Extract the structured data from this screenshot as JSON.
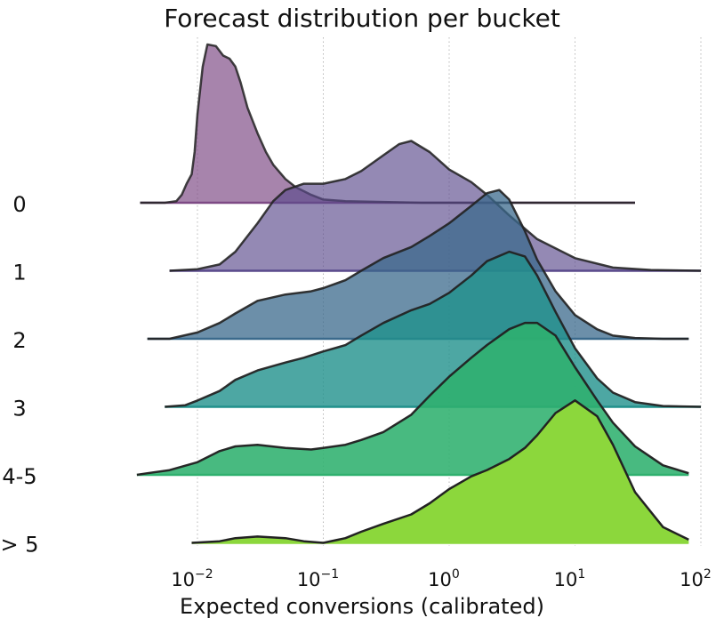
{
  "chart_data": {
    "type": "ridgeline",
    "title": "Forecast distribution per bucket",
    "xlabel": "Expected conversions (calibrated)",
    "xscale": "log",
    "xlim": [
      0.0027,
      120
    ],
    "ticks": [
      {
        "value": 0.01,
        "base": "10",
        "exp": "−2"
      },
      {
        "value": 0.1,
        "base": "10",
        "exp": "−1"
      },
      {
        "value": 1,
        "base": "10",
        "exp": "0"
      },
      {
        "value": 10,
        "base": "10",
        "exp": "1"
      },
      {
        "value": 100,
        "base": "10",
        "exp": "2"
      }
    ],
    "series": [
      {
        "name": "0",
        "color": "#7d4a85",
        "opacity": 0.68,
        "x": [
          0.0035,
          0.0055,
          0.0068,
          0.0075,
          0.0082,
          0.009,
          0.0095,
          0.01,
          0.011,
          0.012,
          0.014,
          0.016,
          0.018,
          0.02,
          0.022,
          0.025,
          0.03,
          0.035,
          0.04,
          0.05,
          0.06,
          0.08,
          0.1,
          0.15,
          0.3,
          0.6,
          1,
          3,
          10,
          30
        ],
        "y": [
          0,
          0,
          0.01,
          0.05,
          0.12,
          0.18,
          0.32,
          0.56,
          0.86,
          1.0,
          0.99,
          0.93,
          0.91,
          0.86,
          0.76,
          0.6,
          0.44,
          0.32,
          0.24,
          0.15,
          0.1,
          0.05,
          0.02,
          0.01,
          0.005,
          0,
          0,
          0,
          0,
          0
        ]
      },
      {
        "name": "1",
        "color": "#5a4a8c",
        "opacity": 0.65,
        "x": [
          0.006,
          0.01,
          0.015,
          0.02,
          0.03,
          0.04,
          0.05,
          0.07,
          0.1,
          0.15,
          0.2,
          0.3,
          0.4,
          0.5,
          0.7,
          1.0,
          1.5,
          2,
          3,
          5,
          10,
          20,
          40,
          100
        ],
        "y": [
          0,
          0.01,
          0.04,
          0.12,
          0.3,
          0.44,
          0.51,
          0.55,
          0.55,
          0.58,
          0.63,
          0.73,
          0.8,
          0.82,
          0.75,
          0.64,
          0.56,
          0.48,
          0.35,
          0.2,
          0.08,
          0.02,
          0.005,
          0
        ]
      },
      {
        "name": "2",
        "color": "#3b6a8c",
        "opacity": 0.75,
        "x": [
          0.004,
          0.006,
          0.01,
          0.015,
          0.02,
          0.03,
          0.05,
          0.08,
          0.1,
          0.15,
          0.2,
          0.3,
          0.5,
          0.7,
          1.0,
          1.5,
          2.0,
          2.5,
          3.0,
          4,
          5,
          7,
          10,
          15,
          20,
          30,
          50,
          80
        ],
        "y": [
          0,
          0,
          0.04,
          0.1,
          0.16,
          0.24,
          0.28,
          0.3,
          0.32,
          0.37,
          0.43,
          0.51,
          0.58,
          0.65,
          0.73,
          0.84,
          0.92,
          0.94,
          0.88,
          0.68,
          0.5,
          0.3,
          0.15,
          0.06,
          0.02,
          0.005,
          0,
          0
        ]
      },
      {
        "name": "3",
        "color": "#21918c",
        "opacity": 0.8,
        "x": [
          0.0055,
          0.008,
          0.01,
          0.015,
          0.02,
          0.03,
          0.05,
          0.07,
          0.1,
          0.15,
          0.2,
          0.3,
          0.5,
          0.7,
          1.0,
          1.5,
          2,
          3,
          4,
          5,
          7,
          10,
          15,
          20,
          30,
          50,
          100
        ],
        "y": [
          0,
          0.01,
          0.04,
          0.1,
          0.17,
          0.23,
          0.28,
          0.31,
          0.35,
          0.39,
          0.45,
          0.53,
          0.61,
          0.65,
          0.72,
          0.83,
          0.92,
          0.98,
          0.95,
          0.83,
          0.6,
          0.37,
          0.18,
          0.09,
          0.03,
          0.005,
          0
        ]
      },
      {
        "name": "4-5",
        "color": "#2fb06e",
        "opacity": 0.88,
        "x": [
          0.0033,
          0.004,
          0.006,
          0.01,
          0.015,
          0.02,
          0.03,
          0.05,
          0.08,
          0.1,
          0.15,
          0.2,
          0.3,
          0.5,
          0.7,
          1.0,
          1.5,
          2,
          3,
          4,
          5,
          7,
          10,
          15,
          20,
          30,
          50,
          80
        ],
        "y": [
          0,
          0.01,
          0.03,
          0.08,
          0.15,
          0.18,
          0.19,
          0.17,
          0.16,
          0.17,
          0.19,
          0.22,
          0.27,
          0.38,
          0.5,
          0.62,
          0.74,
          0.82,
          0.92,
          0.96,
          0.96,
          0.88,
          0.68,
          0.47,
          0.33,
          0.18,
          0.06,
          0.01
        ]
      },
      {
        "name": "> 5",
        "color": "#8cd73c",
        "opacity": 1.0,
        "x": [
          0.009,
          0.015,
          0.02,
          0.03,
          0.05,
          0.07,
          0.1,
          0.15,
          0.2,
          0.3,
          0.5,
          0.7,
          1.0,
          1.5,
          2,
          3,
          4,
          5,
          7,
          10,
          15,
          20,
          30,
          50,
          80
        ],
        "y": [
          0,
          0.01,
          0.03,
          0.04,
          0.03,
          0.01,
          0,
          0.03,
          0.07,
          0.12,
          0.18,
          0.25,
          0.34,
          0.42,
          0.46,
          0.53,
          0.6,
          0.68,
          0.82,
          0.9,
          0.8,
          0.62,
          0.32,
          0.1,
          0.02
        ]
      }
    ]
  }
}
